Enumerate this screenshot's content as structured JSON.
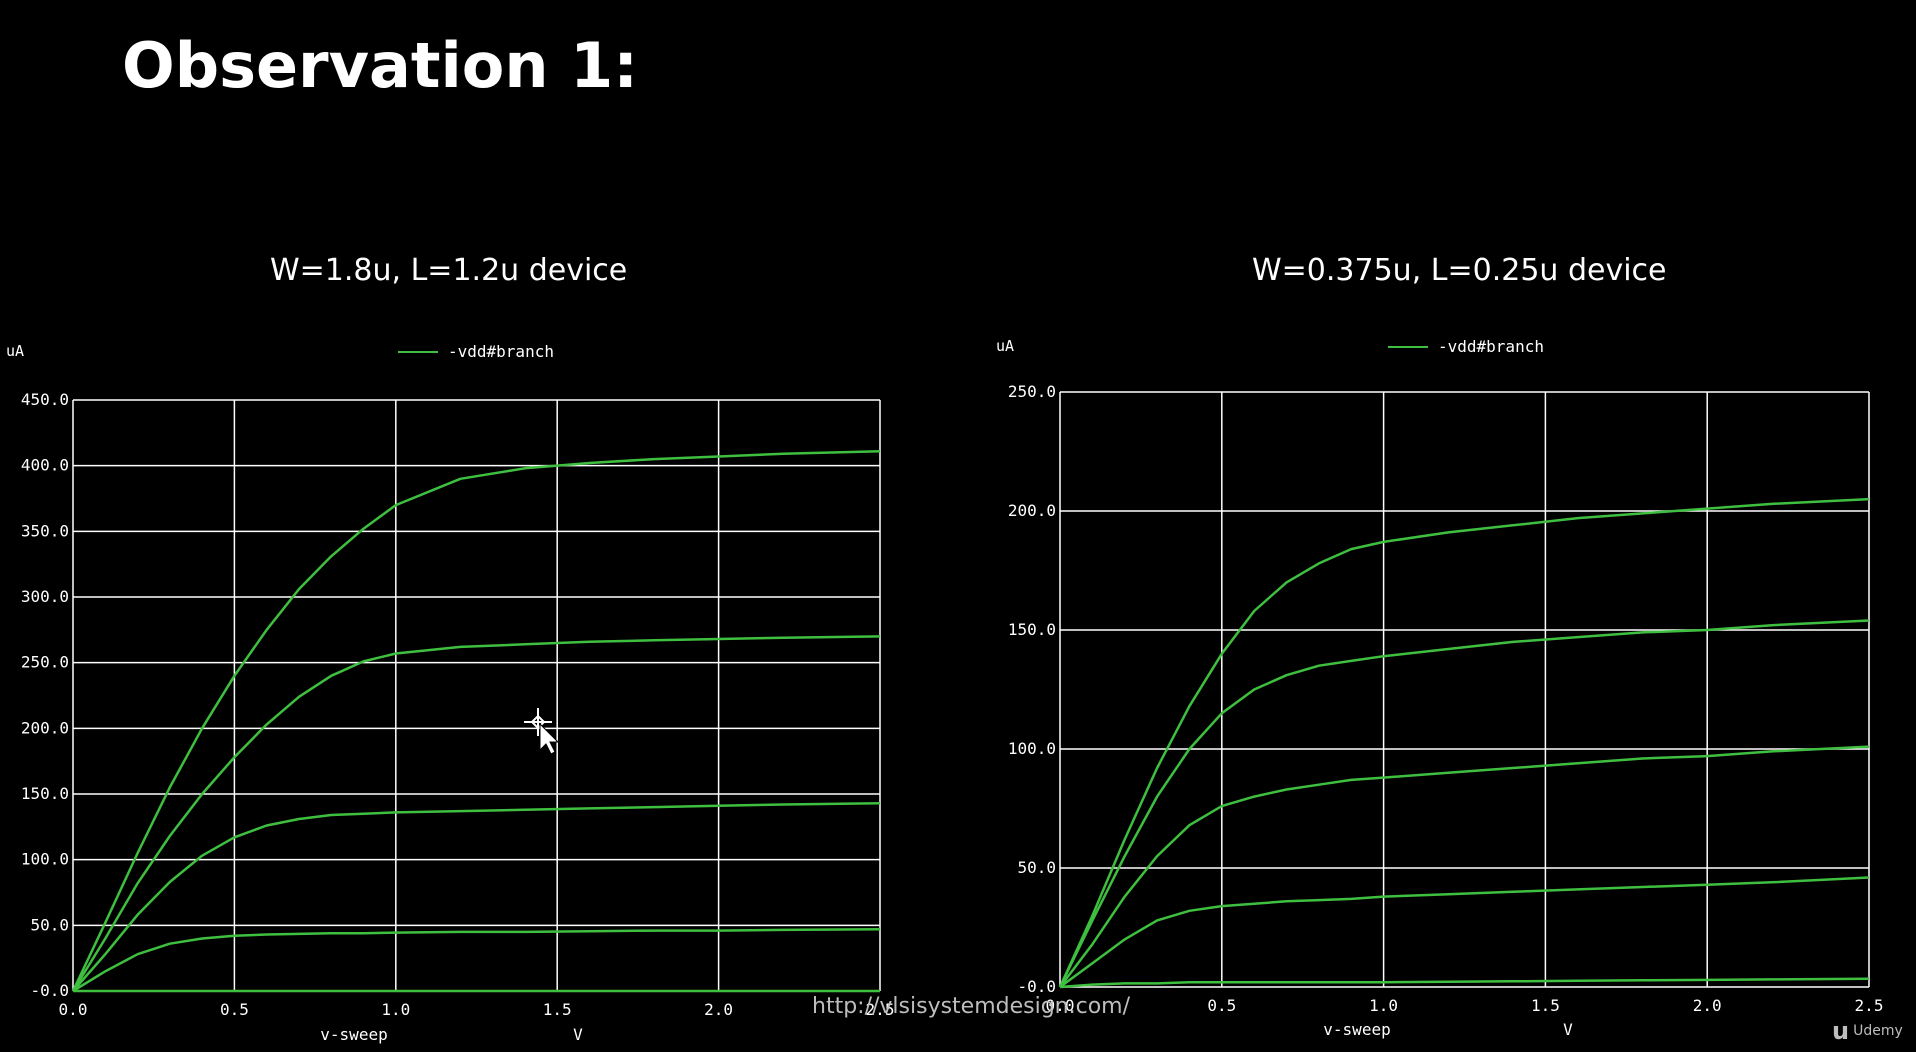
{
  "slide": {
    "title": "Observation 1:",
    "watermark": "http://vlsisystemdesign.com/",
    "brand_mark": "u",
    "brand_name": "Udemy",
    "colors": {
      "background": "#000000",
      "trace": "#3fbf3f",
      "grid": "#ffffff",
      "text": "#ffffff"
    }
  },
  "chart_data": [
    {
      "type": "line",
      "title": "W=1.8u, L=1.2u device",
      "xlabel": "v-sweep",
      "xunit": "V",
      "yunit": "uA",
      "legend": "-vdd#branch",
      "xlim": [
        0,
        2.5
      ],
      "ylim": [
        0,
        450
      ],
      "xticks": [
        0.0,
        0.5,
        1.0,
        1.5,
        2.0,
        2.5
      ],
      "xtick_labels": [
        "0.0",
        "0.5",
        "1.0",
        "1.5",
        "2.0",
        "2.5"
      ],
      "yticks": [
        0,
        50,
        100,
        150,
        200,
        250,
        300,
        350,
        400,
        450
      ],
      "ytick_labels": [
        "-0.0",
        "50.0",
        "100.0",
        "150.0",
        "200.0",
        "250.0",
        "300.0",
        "350.0",
        "400.0",
        "450.0"
      ],
      "grid": true,
      "legend_position": "top-center",
      "x": [
        0,
        0.1,
        0.2,
        0.3,
        0.4,
        0.5,
        0.6,
        0.7,
        0.8,
        0.9,
        1.0,
        1.2,
        1.4,
        1.6,
        1.8,
        2.0,
        2.2,
        2.5
      ],
      "series": [
        {
          "values": [
            0,
            52,
            105,
            155,
            200,
            240,
            275,
            306,
            331,
            352,
            370,
            390,
            398,
            402,
            405,
            407,
            409,
            411
          ]
        },
        {
          "values": [
            0,
            40,
            82,
            118,
            150,
            178,
            203,
            224,
            240,
            251,
            257,
            262,
            264,
            266,
            267,
            268,
            269,
            270
          ]
        },
        {
          "values": [
            0,
            28,
            58,
            83,
            103,
            117,
            126,
            131,
            134,
            135,
            136,
            137,
            138,
            139,
            140,
            141,
            142,
            143
          ]
        },
        {
          "values": [
            0,
            15,
            28,
            36,
            40,
            42,
            43,
            43.5,
            44,
            44,
            44.5,
            45,
            45,
            45.5,
            46,
            46,
            46.5,
            47
          ]
        },
        {
          "values": [
            0,
            0,
            0,
            0,
            0,
            0,
            0,
            0,
            0,
            0,
            0,
            0,
            0,
            0,
            0,
            0,
            0,
            0
          ]
        }
      ]
    },
    {
      "type": "line",
      "title": "W=0.375u, L=0.25u device",
      "xlabel": "v-sweep",
      "xunit": "V",
      "yunit": "uA",
      "legend": "-vdd#branch",
      "xlim": [
        0,
        2.5
      ],
      "ylim": [
        0,
        250
      ],
      "xticks": [
        0.0,
        0.5,
        1.0,
        1.5,
        2.0,
        2.5
      ],
      "xtick_labels": [
        "0.0",
        "0.5",
        "1.0",
        "1.5",
        "2.0",
        "2.5"
      ],
      "yticks": [
        0,
        50,
        100,
        150,
        200,
        250
      ],
      "ytick_labels": [
        "-0.0",
        "50.0",
        "100.0",
        "150.0",
        "200.0",
        "250.0"
      ],
      "grid": true,
      "legend_position": "top-center",
      "x": [
        0,
        0.1,
        0.2,
        0.3,
        0.4,
        0.5,
        0.6,
        0.7,
        0.8,
        0.9,
        1.0,
        1.2,
        1.4,
        1.6,
        1.8,
        2.0,
        2.2,
        2.5
      ],
      "series": [
        {
          "values": [
            0,
            30,
            62,
            92,
            118,
            140,
            158,
            170,
            178,
            184,
            187,
            191,
            194,
            197,
            199,
            201,
            203,
            205
          ]
        },
        {
          "values": [
            0,
            28,
            55,
            80,
            100,
            115,
            125,
            131,
            135,
            137,
            139,
            142,
            145,
            147,
            149,
            150,
            152,
            154
          ]
        },
        {
          "values": [
            0,
            18,
            38,
            55,
            68,
            76,
            80,
            83,
            85,
            87,
            88,
            90,
            92,
            94,
            96,
            97,
            99,
            101
          ]
        },
        {
          "values": [
            0,
            10,
            20,
            28,
            32,
            34,
            35,
            36,
            36.5,
            37,
            38,
            39,
            40,
            41,
            42,
            43,
            44,
            46
          ]
        },
        {
          "values": [
            0,
            1,
            1.5,
            1.5,
            2,
            2,
            2,
            2,
            2,
            2,
            2,
            2.2,
            2.4,
            2.6,
            2.8,
            3,
            3.2,
            3.5
          ]
        }
      ]
    }
  ]
}
